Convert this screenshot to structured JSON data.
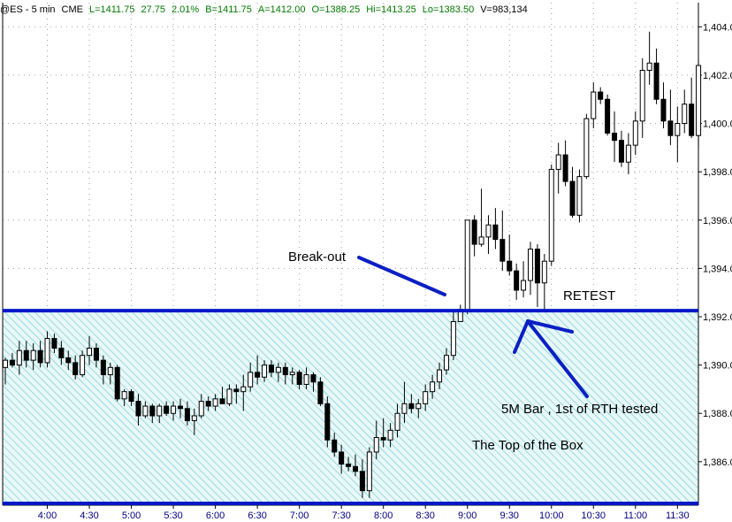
{
  "header": {
    "symbol": "@ES - 5 min",
    "exchange": "CME",
    "last": "L=1411.75",
    "change": "27.75",
    "change_pct": "2.01%",
    "bid": "B=1411.75",
    "ask": "A=1412.00",
    "open": "O=1388.25",
    "high": "Hi=1413.25",
    "low": "Lo=1383.50",
    "volume": "V=983,134"
  },
  "colors": {
    "box_fill": "#e8f8f8",
    "box_hatch": "#6cc6cf",
    "level_line": "#0018c8",
    "arrow": "#0b1fc4",
    "candle": "#000000",
    "x_label": "#000080"
  },
  "annotations": {
    "breakout": "Break-out",
    "retest": "RETEST",
    "bar_note": "5M Bar , 1st of RTH tested",
    "box_top": "The Top of the Box"
  },
  "chart_data": {
    "type": "candlestick",
    "ylim": [
      1384.2,
      1405.0
    ],
    "y_ticks": [
      1386,
      1388,
      1390,
      1392,
      1394,
      1396,
      1398,
      1400,
      1402,
      1404
    ],
    "y_tick_labels": [
      "1,386.0",
      "1,388.0",
      "1,390.0",
      "1,392.0",
      "1,394.0",
      "1,396.0",
      "1,398.0",
      "1,400.0",
      "1,402.0",
      "1,404.0"
    ],
    "x_tick_labels": [
      "4:00",
      "4:30",
      "5:00",
      "5:30",
      "6:00",
      "6:30",
      "7:00",
      "7:30",
      "8:00",
      "8:30",
      "9:00",
      "9:30",
      "10:00",
      "10:30",
      "11:00",
      "11:30"
    ],
    "x_tick_bar_index": [
      6,
      12,
      18,
      24,
      30,
      36,
      42,
      48,
      54,
      60,
      66,
      72,
      78,
      84,
      90,
      96
    ],
    "level": 1392.25,
    "box_range": [
      1384.2,
      1392.25
    ],
    "bars": [
      [
        1389.9,
        1390.3,
        1389.2,
        1390.2
      ],
      [
        1390.2,
        1390.5,
        1389.9,
        1390.0
      ],
      [
        1390.0,
        1391.0,
        1389.6,
        1390.6
      ],
      [
        1390.6,
        1391.0,
        1389.9,
        1390.2
      ],
      [
        1390.2,
        1390.9,
        1389.8,
        1390.6
      ],
      [
        1390.6,
        1391.0,
        1389.9,
        1390.1
      ],
      [
        1390.1,
        1391.4,
        1389.9,
        1391.1
      ],
      [
        1391.1,
        1391.3,
        1390.5,
        1390.7
      ],
      [
        1390.7,
        1391.0,
        1390.0,
        1390.3
      ],
      [
        1390.3,
        1390.6,
        1389.8,
        1390.1
      ],
      [
        1390.1,
        1390.4,
        1389.4,
        1389.6
      ],
      [
        1389.6,
        1390.6,
        1389.5,
        1390.4
      ],
      [
        1390.4,
        1391.2,
        1390.0,
        1390.7
      ],
      [
        1390.7,
        1390.9,
        1389.9,
        1390.2
      ],
      [
        1390.2,
        1390.4,
        1389.2,
        1389.6
      ],
      [
        1389.6,
        1390.1,
        1389.2,
        1389.9
      ],
      [
        1389.9,
        1390.0,
        1388.5,
        1388.6
      ],
      [
        1388.6,
        1389.0,
        1388.3,
        1388.9
      ],
      [
        1388.9,
        1389.0,
        1388.3,
        1388.5
      ],
      [
        1388.5,
        1388.8,
        1387.5,
        1387.9
      ],
      [
        1387.9,
        1388.5,
        1387.8,
        1388.3
      ],
      [
        1388.3,
        1388.4,
        1387.6,
        1387.9
      ],
      [
        1387.9,
        1388.4,
        1387.6,
        1388.3
      ],
      [
        1388.3,
        1388.5,
        1387.9,
        1388.0
      ],
      [
        1388.0,
        1388.5,
        1387.7,
        1388.3
      ],
      [
        1388.3,
        1388.6,
        1387.8,
        1388.2
      ],
      [
        1388.2,
        1388.5,
        1387.5,
        1387.7
      ],
      [
        1387.7,
        1388.2,
        1387.1,
        1387.9
      ],
      [
        1387.9,
        1388.8,
        1387.8,
        1388.5
      ],
      [
        1388.5,
        1388.7,
        1388.1,
        1388.3
      ],
      [
        1388.3,
        1388.8,
        1388.1,
        1388.6
      ],
      [
        1388.6,
        1389.1,
        1388.4,
        1388.4
      ],
      [
        1388.4,
        1389.2,
        1388.3,
        1389.0
      ],
      [
        1389.0,
        1389.2,
        1388.4,
        1388.9
      ],
      [
        1388.9,
        1389.6,
        1388.1,
        1389.1
      ],
      [
        1389.1,
        1390.1,
        1388.9,
        1389.7
      ],
      [
        1389.7,
        1390.4,
        1389.2,
        1389.5
      ],
      [
        1389.5,
        1390.2,
        1389.3,
        1390.0
      ],
      [
        1390.0,
        1390.2,
        1389.5,
        1389.7
      ],
      [
        1389.7,
        1390.1,
        1389.3,
        1389.9
      ],
      [
        1389.9,
        1390.1,
        1389.2,
        1389.6
      ],
      [
        1389.6,
        1389.9,
        1389.2,
        1389.7
      ],
      [
        1389.7,
        1389.8,
        1389.0,
        1389.2
      ],
      [
        1389.2,
        1389.9,
        1389.0,
        1389.6
      ],
      [
        1389.6,
        1389.7,
        1388.9,
        1389.3
      ],
      [
        1389.3,
        1389.5,
        1388.3,
        1388.4
      ],
      [
        1388.4,
        1388.7,
        1386.6,
        1386.9
      ],
      [
        1386.9,
        1387.2,
        1386.2,
        1386.4
      ],
      [
        1386.4,
        1386.7,
        1385.5,
        1385.9
      ],
      [
        1385.9,
        1386.2,
        1385.6,
        1385.8
      ],
      [
        1385.8,
        1386.3,
        1385.4,
        1385.6
      ],
      [
        1385.6,
        1386.1,
        1384.5,
        1384.8
      ],
      [
        1384.8,
        1386.6,
        1384.5,
        1386.4
      ],
      [
        1386.4,
        1387.7,
        1386.1,
        1387.0
      ],
      [
        1387.0,
        1387.8,
        1386.6,
        1386.9
      ],
      [
        1386.9,
        1387.6,
        1386.6,
        1387.3
      ],
      [
        1387.3,
        1388.4,
        1387.0,
        1388.0
      ],
      [
        1388.0,
        1389.3,
        1387.6,
        1388.4
      ],
      [
        1388.4,
        1388.8,
        1388.0,
        1388.2
      ],
      [
        1388.2,
        1388.6,
        1387.8,
        1388.4
      ],
      [
        1388.4,
        1389.2,
        1388.1,
        1388.9
      ],
      [
        1388.9,
        1389.6,
        1388.6,
        1389.3
      ],
      [
        1389.3,
        1390.1,
        1389.0,
        1389.8
      ],
      [
        1389.8,
        1390.7,
        1389.6,
        1390.4
      ],
      [
        1390.4,
        1392.3,
        1390.2,
        1391.8
      ],
      [
        1391.8,
        1392.5,
        1392.1,
        1392.3
      ],
      [
        1392.3,
        1396.0,
        1392.1,
        1396.0
      ],
      [
        1396.0,
        1396.2,
        1394.5,
        1395.0
      ],
      [
        1395.0,
        1397.3,
        1394.9,
        1395.3
      ],
      [
        1395.3,
        1396.2,
        1394.6,
        1395.8
      ],
      [
        1395.8,
        1396.5,
        1394.8,
        1395.2
      ],
      [
        1395.2,
        1396.4,
        1393.9,
        1394.3
      ],
      [
        1394.3,
        1395.4,
        1393.7,
        1393.9
      ],
      [
        1393.9,
        1394.2,
        1392.7,
        1393.1
      ],
      [
        1393.1,
        1394.3,
        1392.8,
        1393.5
      ],
      [
        1393.5,
        1395.1,
        1392.9,
        1394.8
      ],
      [
        1394.8,
        1395.0,
        1392.4,
        1393.4
      ],
      [
        1393.4,
        1394.6,
        1392.3,
        1394.3
      ],
      [
        1394.3,
        1398.3,
        1394.1,
        1398.1
      ],
      [
        1398.1,
        1399.2,
        1397.1,
        1398.7
      ],
      [
        1398.7,
        1399.3,
        1397.4,
        1397.6
      ],
      [
        1397.6,
        1398.2,
        1396.1,
        1396.2
      ],
      [
        1396.2,
        1398.1,
        1395.9,
        1397.8
      ],
      [
        1397.8,
        1400.4,
        1397.7,
        1400.2
      ],
      [
        1400.2,
        1401.7,
        1399.8,
        1401.3
      ],
      [
        1401.3,
        1401.5,
        1400.8,
        1401.0
      ],
      [
        1401.0,
        1401.2,
        1399.5,
        1399.6
      ],
      [
        1399.6,
        1400.5,
        1398.4,
        1399.3
      ],
      [
        1399.3,
        1399.7,
        1398.2,
        1398.4
      ],
      [
        1398.4,
        1399.6,
        1397.9,
        1399.1
      ],
      [
        1399.1,
        1400.5,
        1398.7,
        1400.1
      ],
      [
        1400.1,
        1402.7,
        1399.4,
        1402.2
      ],
      [
        1402.2,
        1403.8,
        1401.6,
        1402.5
      ],
      [
        1402.5,
        1403.1,
        1400.8,
        1401.0
      ],
      [
        1401.0,
        1401.7,
        1399.8,
        1400.1
      ],
      [
        1400.1,
        1401.4,
        1399.1,
        1399.5
      ],
      [
        1399.5,
        1400.7,
        1398.4,
        1400.0
      ],
      [
        1400.0,
        1401.4,
        1399.6,
        1400.8
      ],
      [
        1400.8,
        1401.9,
        1399.4,
        1399.5
      ],
      [
        1399.5,
        1402.6,
        1399.0,
        1402.4
      ]
    ]
  }
}
